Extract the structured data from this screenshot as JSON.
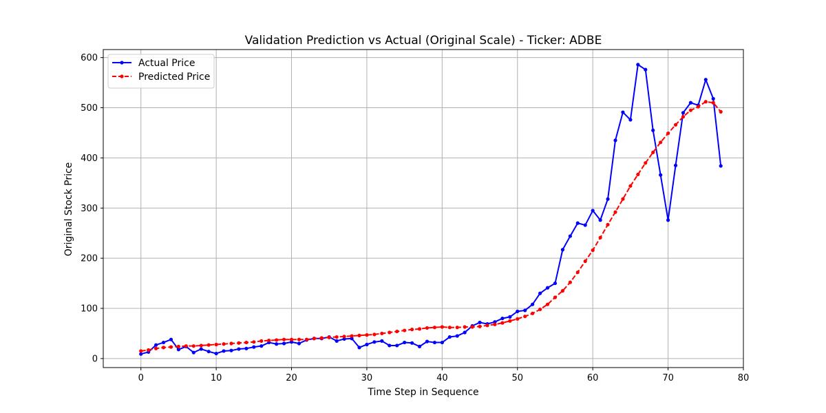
{
  "chart_data": {
    "type": "line",
    "title": "Validation Prediction vs Actual (Original Scale) - Ticker: ADBE",
    "xlabel": "Time Step in Sequence",
    "ylabel": "Original Stock Price",
    "xlim": [
      -5,
      80
    ],
    "ylim": [
      -18,
      616
    ],
    "x_ticks": [
      0,
      10,
      20,
      30,
      40,
      50,
      60,
      70,
      80
    ],
    "y_ticks": [
      0,
      100,
      200,
      300,
      400,
      500,
      600
    ],
    "grid": true,
    "legend_position": "top-left",
    "series": [
      {
        "name": "Actual Price",
        "color": "#0000ff",
        "style": "solid",
        "marker": "circle",
        "values": [
          9,
          13,
          27,
          32,
          38,
          18,
          24,
          12,
          19,
          14,
          10,
          15,
          16,
          19,
          20,
          23,
          25,
          32,
          29,
          30,
          33,
          30,
          37,
          40,
          40,
          43,
          35,
          39,
          40,
          22,
          28,
          33,
          35,
          26,
          26,
          32,
          31,
          24,
          34,
          32,
          32,
          43,
          45,
          52,
          65,
          72,
          69,
          73,
          80,
          83,
          94,
          96,
          108,
          130,
          141,
          150,
          217,
          244,
          270,
          266,
          295,
          276,
          318,
          435,
          491,
          476,
          586,
          576,
          455,
          366,
          276,
          385,
          490,
          510,
          505,
          556,
          518,
          384
        ]
      },
      {
        "name": "Predicted Price",
        "color": "#ff0000",
        "style": "dashed",
        "marker": "circle",
        "values": [
          15,
          17,
          20,
          22,
          23,
          24,
          25,
          25,
          26,
          27,
          28,
          29,
          30,
          31,
          32,
          33,
          35,
          36,
          37,
          38,
          38,
          38,
          38,
          40,
          41,
          42,
          43,
          44,
          45,
          46,
          47,
          48,
          50,
          52,
          54,
          56,
          58,
          59,
          61,
          62,
          63,
          62,
          62,
          63,
          63,
          64,
          66,
          68,
          71,
          75,
          79,
          84,
          90,
          98,
          108,
          122,
          135,
          152,
          172,
          194,
          216,
          241,
          267,
          292,
          318,
          344,
          367,
          390,
          411,
          431,
          449,
          466,
          482,
          495,
          502,
          512,
          510,
          492
        ]
      }
    ]
  }
}
